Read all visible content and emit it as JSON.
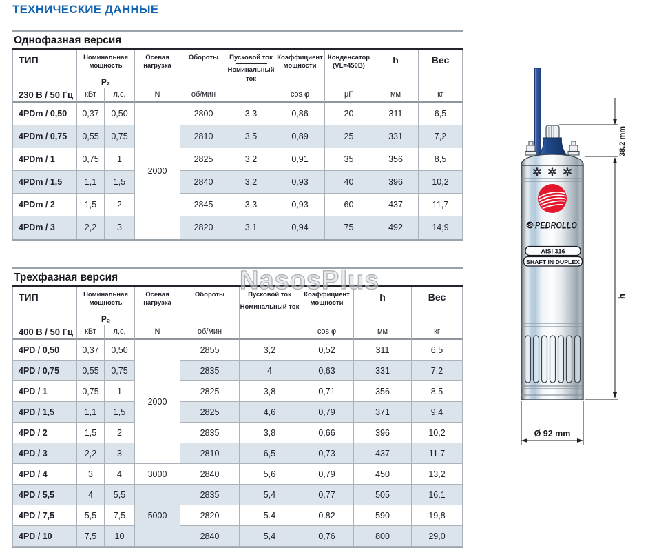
{
  "page_title": "ТЕХНИЧЕСКИЕ ДАННЫЕ",
  "watermark": "NasosPlus",
  "colors": {
    "accent_blue": "#1565b0",
    "row_shade": "#dbe3eb",
    "border_gray": "#abb2ba",
    "logo_red": "#e2192e",
    "cable_blue": "#33589f"
  },
  "tables": [
    {
      "section_title": "Однофазная версия",
      "voltage": "230 В / 50 Гц",
      "headers": {
        "type": "ТИП",
        "power_line1": "Номинальная",
        "power_line2": "мощность",
        "power_sub": "P₂",
        "axial_line1": "Осевая",
        "axial_line2": "нагрузка",
        "rpm": "Обороты",
        "start_top": "Пусковой ток",
        "start_bottom": "Номинальный ток",
        "cos_line1": "Коэффициент",
        "cos_line2": "мощности",
        "cap_line1": "Конденсатор",
        "cap_line2": "(VL=450В)",
        "h": "h",
        "weight": "Вес"
      },
      "units": {
        "kw": "кВт",
        "hp": "л,с,",
        "n": "N",
        "rpm": "об/мин",
        "start": "",
        "cos": "cos φ",
        "uf": "μF",
        "mm": "мм",
        "kg": "кг"
      },
      "cols": [
        "type",
        "kw",
        "hp",
        "n",
        "rpm",
        "start",
        "cos",
        "uf",
        "mm",
        "kg"
      ],
      "rows": [
        {
          "type": "4PDm / 0,50",
          "kw": "0,37",
          "hp": "0,50",
          "n": {
            "v": "2000",
            "rowspan": 6
          },
          "rpm": "2800",
          "start": "3,3",
          "cos": "0,86",
          "uf": "20",
          "mm": "311",
          "kg": "6,5"
        },
        {
          "type": "4PDm / 0,75",
          "kw": "0,55",
          "hp": "0,75",
          "rpm": "2810",
          "start": "3,5",
          "cos": "0,89",
          "uf": "25",
          "mm": "331",
          "kg": "7,2"
        },
        {
          "type": "4PDm / 1",
          "kw": "0,75",
          "hp": "1",
          "rpm": "2825",
          "start": "3,2",
          "cos": "0,91",
          "uf": "35",
          "mm": "356",
          "kg": "8,5"
        },
        {
          "type": "4PDm / 1,5",
          "kw": "1,1",
          "hp": "1,5",
          "rpm": "2840",
          "start": "3,2",
          "cos": "0,93",
          "uf": "40",
          "mm": "396",
          "kg": "10,2"
        },
        {
          "type": "4PDm / 2",
          "kw": "1,5",
          "hp": "2",
          "rpm": "2845",
          "start": "3,3",
          "cos": "0,93",
          "uf": "60",
          "mm": "437",
          "kg": "11,7"
        },
        {
          "type": "4PDm / 3",
          "kw": "2,2",
          "hp": "3",
          "rpm": "2820",
          "start": "3,1",
          "cos": "0,94",
          "uf": "75",
          "mm": "492",
          "kg": "14,9"
        }
      ]
    },
    {
      "section_title": "Трехфазная версия",
      "voltage": "400 В / 50 Гц",
      "headers": {
        "type": "ТИП",
        "power_line1": "Номинальная",
        "power_line2": "мощность",
        "power_sub": "P₂",
        "axial_line1": "Осевая",
        "axial_line2": "нагрузка",
        "rpm": "Обороты",
        "start_top": "Пусковой ток",
        "start_bottom": "Номинальный ток",
        "cos_line1": "Коэффициент",
        "cos_line2": "мощности",
        "h": "h",
        "weight": "Вес"
      },
      "units": {
        "kw": "кВт",
        "hp": "л,с,",
        "n": "N",
        "rpm": "об/мин",
        "start": "",
        "cos": "cos φ",
        "mm": "мм",
        "kg": "кг"
      },
      "cols": [
        "type",
        "kw",
        "hp",
        "n",
        "rpm",
        "start",
        "cos",
        "mm",
        "kg"
      ],
      "rows": [
        {
          "type": "4PD / 0,50",
          "kw": "0,37",
          "hp": "0,50",
          "n": {
            "v": "2000",
            "rowspan": 6
          },
          "rpm": "2855",
          "start": "3,2",
          "cos": "0,52",
          "mm": "311",
          "kg": "6,5"
        },
        {
          "type": "4PD / 0,75",
          "kw": "0,55",
          "hp": "0,75",
          "rpm": "2835",
          "start": "4",
          "cos": "0,63",
          "mm": "331",
          "kg": "7,2"
        },
        {
          "type": "4PD / 1",
          "kw": "0,75",
          "hp": "1",
          "rpm": "2825",
          "start": "3,8",
          "cos": "0,71",
          "mm": "356",
          "kg": "8,5"
        },
        {
          "type": "4PD / 1,5",
          "kw": "1,1",
          "hp": "1,5",
          "rpm": "2825",
          "start": "4,6",
          "cos": "0,79",
          "mm": "371",
          "kg": "9,4"
        },
        {
          "type": "4PD / 2",
          "kw": "1,5",
          "hp": "2",
          "rpm": "2835",
          "start": "3,8",
          "cos": "0,66",
          "mm": "396",
          "kg": "10,2"
        },
        {
          "type": "4PD / 3",
          "kw": "2,2",
          "hp": "3",
          "rpm": "2810",
          "start": "6,5",
          "cos": "0,73",
          "mm": "437",
          "kg": "11,7"
        },
        {
          "type": "4PD / 4",
          "kw": "3",
          "hp": "4",
          "n": {
            "v": "3000",
            "rowspan": 1
          },
          "rpm": "2840",
          "start": "5,6",
          "cos": "0,79",
          "mm": "450",
          "kg": "13,2"
        },
        {
          "type": "4PD / 5,5",
          "kw": "4",
          "hp": "5,5",
          "n": {
            "v": "5000",
            "rowspan": 3
          },
          "rpm": "2835",
          "start": "5,4",
          "cos": "0,77",
          "mm": "505",
          "kg": "16,1"
        },
        {
          "type": "4PD / 7,5",
          "kw": "5,5",
          "hp": "7,5",
          "rpm": "2820",
          "start": "5.4",
          "cos": "0.82",
          "mm": "590",
          "kg": "19,8"
        },
        {
          "type": "4PD / 10",
          "kw": "7,5",
          "hp": "10",
          "rpm": "2840",
          "start": "5,4",
          "cos": "0,76",
          "mm": "800",
          "kg": "29,0"
        }
      ]
    }
  ],
  "figure": {
    "brand": "PEDROLLO",
    "badges": [
      "AISI 316",
      "SHAFT IN DUPLEX"
    ],
    "dim_top": "38.2 mm",
    "dim_height_label": "h",
    "dim_diameter": "Ø 92 mm"
  }
}
